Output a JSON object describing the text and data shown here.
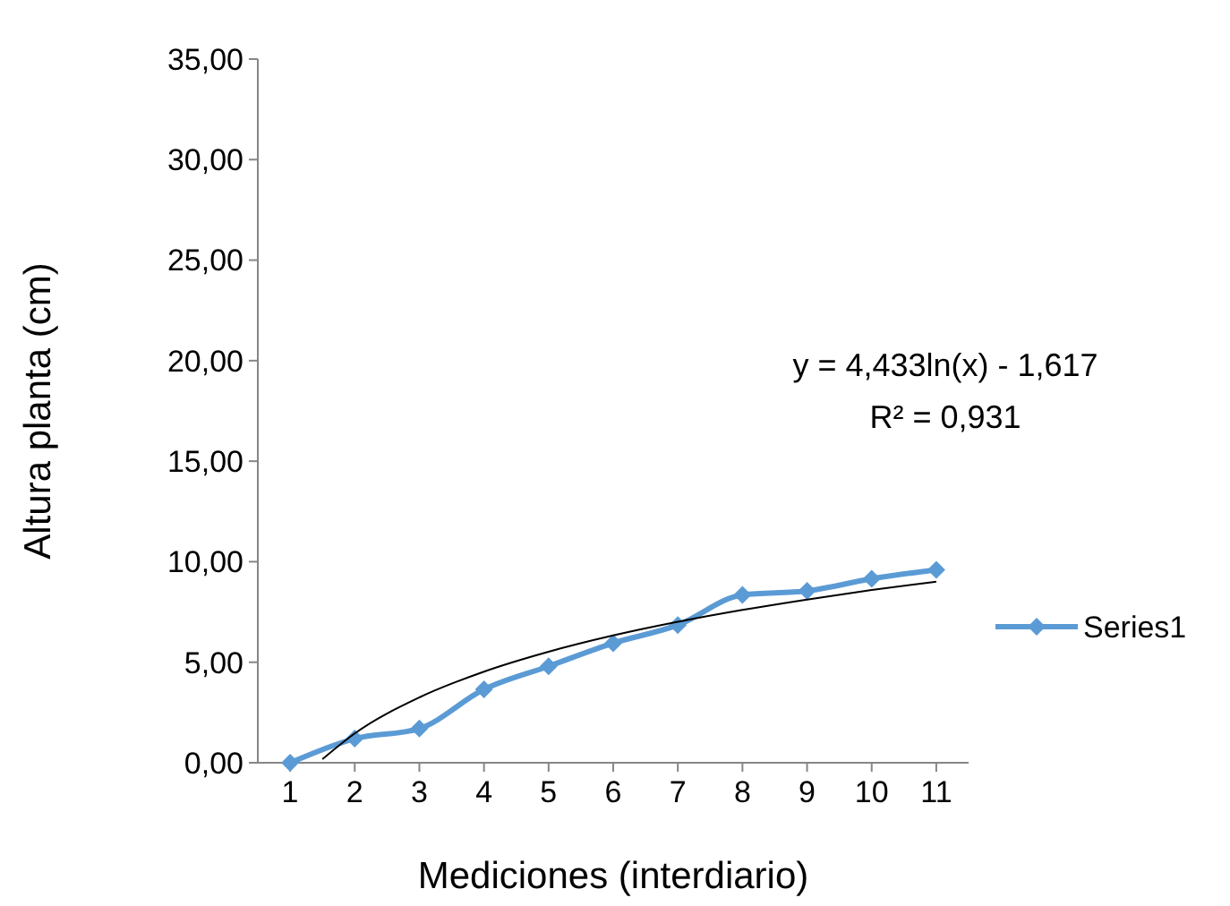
{
  "chart_data": {
    "type": "line",
    "xlabel": "Mediciones (interdiario)",
    "ylabel": "Altura planta (cm)",
    "x": [
      1,
      2,
      3,
      4,
      5,
      6,
      7,
      8,
      9,
      10,
      11
    ],
    "xlim": [
      0.5,
      11.5
    ],
    "xticks": [
      1,
      2,
      3,
      4,
      5,
      6,
      7,
      8,
      9,
      10,
      11
    ],
    "ylim": [
      0,
      35
    ],
    "yticks": [
      {
        "value": 0,
        "label": "0,00"
      },
      {
        "value": 5,
        "label": "5,00"
      },
      {
        "value": 10,
        "label": "10,00"
      },
      {
        "value": 15,
        "label": "15,00"
      },
      {
        "value": 20,
        "label": "20,00"
      },
      {
        "value": 25,
        "label": "25,00"
      },
      {
        "value": 30,
        "label": "30,00"
      },
      {
        "value": 35,
        "label": "35,00"
      }
    ],
    "series": [
      {
        "name": "Series1",
        "color": "#5b9bd5",
        "marker": "diamond",
        "values": [
          0,
          1.2,
          1.7,
          3.65,
          4.8,
          5.95,
          6.85,
          8.35,
          8.55,
          9.15,
          9.6
        ]
      },
      {
        "type": "line",
        "color": "#000000",
        "marker": "none",
        "x": [
          1.5,
          2,
          3,
          4,
          5,
          6,
          7,
          8,
          9,
          10,
          11
        ],
        "values": [
          0.18,
          1.46,
          3.25,
          4.53,
          5.52,
          6.33,
          7.01,
          7.6,
          8.12,
          8.59,
          9.01
        ]
      }
    ],
    "annotations": [
      "y = 4,433ln(x) - 1,617",
      "R² = 0,931"
    ],
    "legend": "right",
    "grid": false
  }
}
